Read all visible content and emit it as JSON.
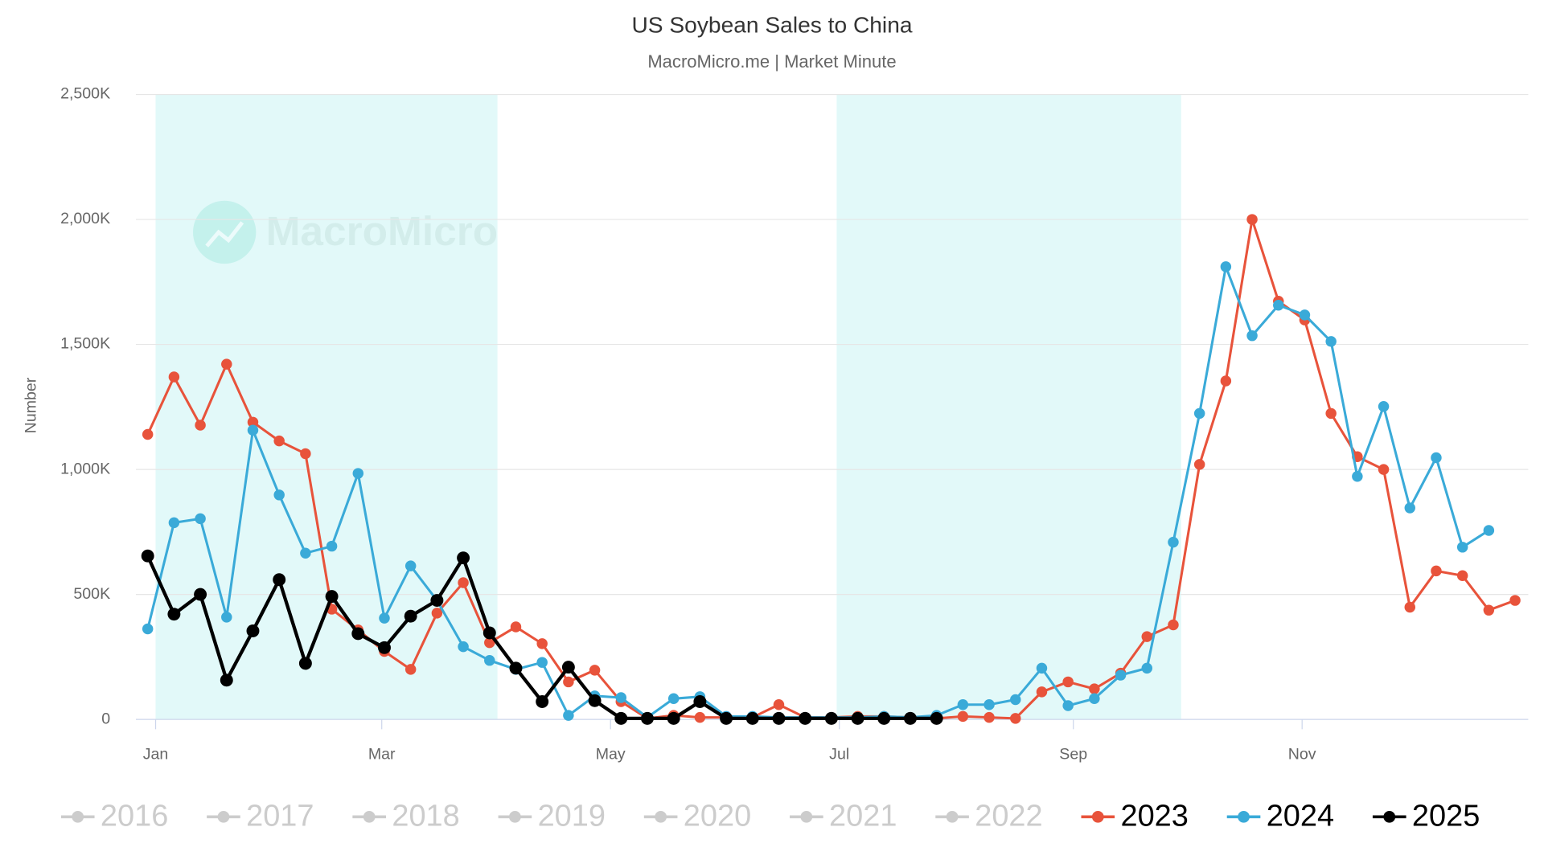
{
  "chart_data": {
    "type": "line",
    "title": "US Soybean Sales to China",
    "subtitle": "MacroMicro.me | Market Minute",
    "watermark": "MacroMicro",
    "y_label": "Number",
    "x": [
      0,
      1,
      2,
      3,
      4,
      5,
      6,
      7,
      8,
      9,
      10,
      11,
      12,
      13,
      14,
      15,
      16,
      17,
      18,
      19,
      20,
      21,
      22,
      23,
      24,
      25,
      26,
      27,
      28,
      29,
      30,
      31,
      32,
      33,
      34,
      35,
      36,
      37,
      38,
      39,
      40,
      41,
      42,
      43,
      44,
      45,
      46,
      47,
      48,
      49,
      50,
      51,
      52
    ],
    "xlim": [
      -0.45,
      52.5
    ],
    "xticks": [
      {
        "value": 0.3,
        "label": "Jan"
      },
      {
        "value": 8.9,
        "label": "Mar"
      },
      {
        "value": 17.6,
        "label": "May"
      },
      {
        "value": 26.3,
        "label": "Jul"
      },
      {
        "value": 35.2,
        "label": "Sep"
      },
      {
        "value": 43.9,
        "label": "Nov"
      }
    ],
    "ylim": [
      0,
      2500000
    ],
    "yticks": [
      0,
      {
        "value": 500000,
        "label": "500K"
      },
      {
        "value": 1000000,
        "label": "1,000K"
      },
      {
        "value": 1500000,
        "label": "1,500K"
      },
      {
        "value": 2000000,
        "label": "2,000K"
      },
      {
        "value": 2500000,
        "label": "2,500K"
      }
    ],
    "grid": true,
    "bands": [
      [
        0.3,
        13.3
      ],
      [
        26.2,
        39.3
      ]
    ],
    "band_color": "#e2f9f9",
    "legend": "bottom",
    "series": [
      {
        "name": "2016",
        "visible": false,
        "color": "#cccccc"
      },
      {
        "name": "2017",
        "visible": false,
        "color": "#cccccc"
      },
      {
        "name": "2018",
        "visible": false,
        "color": "#cccccc"
      },
      {
        "name": "2019",
        "visible": false,
        "color": "#cccccc"
      },
      {
        "name": "2020",
        "visible": false,
        "color": "#cccccc"
      },
      {
        "name": "2021",
        "visible": false,
        "color": "#cccccc"
      },
      {
        "name": "2022",
        "visible": false,
        "color": "#cccccc"
      },
      {
        "name": "2023",
        "visible": true,
        "color": "#e8533b",
        "width": 2.5,
        "values": [
          1140000,
          1370000,
          1177000,
          1421000,
          1189000,
          1114000,
          1063000,
          441000,
          358000,
          272000,
          200000,
          425000,
          547000,
          307000,
          370000,
          303000,
          150000,
          197000,
          71000,
          4000,
          16000,
          8000,
          8000,
          8000,
          59000,
          8000,
          8000,
          12000,
          12000,
          8000,
          4000,
          12000,
          8000,
          4000,
          110000,
          150000,
          122000,
          185000,
          331000,
          378000,
          1020000,
          1354000,
          2000000,
          1673000,
          1598000,
          1224000,
          1051000,
          1000000,
          449000,
          594000,
          575000,
          437000,
          476000
        ]
      },
      {
        "name": "2024",
        "visible": true,
        "color": "#3aaad8",
        "width": 2.5,
        "values": [
          362000,
          787000,
          803000,
          409000,
          1157000,
          898000,
          665000,
          693000,
          984000,
          405000,
          614000,
          476000,
          291000,
          236000,
          200000,
          228000,
          16000,
          94000,
          87000,
          8000,
          83000,
          91000,
          12000,
          12000,
          8000,
          8000,
          8000,
          8000,
          12000,
          8000,
          16000,
          59000,
          59000,
          79000,
          205000,
          55000,
          83000,
          177000,
          205000,
          709000,
          1224000,
          1811000,
          1535000,
          1657000,
          1618000,
          1512000,
          972000,
          1252000,
          846000,
          1047000,
          689000,
          756000,
          null
        ]
      },
      {
        "name": "2025",
        "visible": true,
        "color": "#000000",
        "width": 3.5,
        "values": [
          654000,
          421000,
          500000,
          157000,
          354000,
          559000,
          224000,
          492000,
          343000,
          287000,
          413000,
          476000,
          646000,
          346000,
          205000,
          71000,
          209000,
          75000,
          4000,
          4000,
          4000,
          71000,
          4000,
          4000,
          4000,
          4000,
          4000,
          4000,
          4000,
          4000,
          4000,
          null,
          null,
          null,
          null,
          null,
          null,
          null,
          null,
          null,
          null,
          null,
          null,
          null,
          null,
          null,
          null,
          null,
          null,
          null,
          null,
          null,
          null
        ]
      }
    ]
  }
}
